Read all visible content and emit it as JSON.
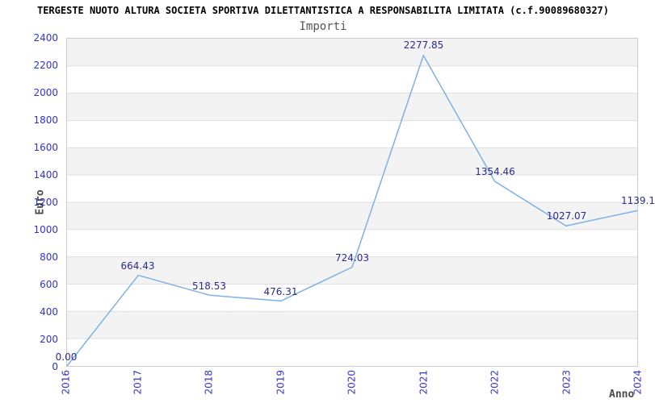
{
  "header": {
    "title": "TERGESTE NUOTO ALTURA SOCIETA SPORTIVA DILETTANTISTICA A RESPONSABILITA LIMITATA (c.f.90089680327)",
    "subtitle": "Importi"
  },
  "chart_data": {
    "type": "line",
    "title": "Importi",
    "xlabel": "Anno",
    "ylabel": "Euro",
    "categories": [
      "2016",
      "2017",
      "2018",
      "2019",
      "2020",
      "2021",
      "2022",
      "2023",
      "2024"
    ],
    "values": [
      0.0,
      664.43,
      518.53,
      476.31,
      724.03,
      2277.85,
      1354.46,
      1027.07,
      1139.1
    ],
    "point_labels": [
      "0.00",
      "664.43",
      "518.53",
      "476.31",
      "724.03",
      "2277.85",
      "1354.46",
      "1027.07",
      "1139.1"
    ],
    "ylim": [
      0,
      2400
    ],
    "ytick_step": 200,
    "grid": "horizontal-bands-alternating",
    "legend": "none",
    "colors": {
      "line": "#7db0e6",
      "tick_label": "#3232cd",
      "point_label": "#2b2b8c",
      "band_fill": "#f3f3f3",
      "gridline": "#e0e0e0",
      "plot_border": "#cccccc",
      "axis_title": "#4a4a4a",
      "title": "#000000",
      "subtitle": "#555555"
    }
  }
}
